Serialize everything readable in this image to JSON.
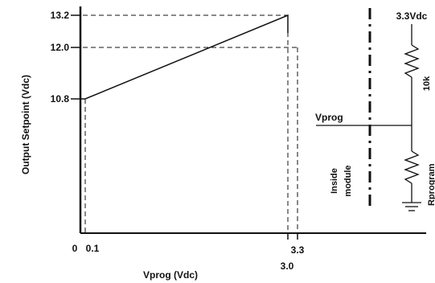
{
  "chart_data": {
    "type": "line",
    "xlabel": "Vprog (Vdc)",
    "ylabel": "Output Setpoint (Vdc)",
    "x_ticks": [
      "0",
      "0.1",
      "3.3",
      "3.0"
    ],
    "y_ticks": [
      "13.2",
      "12.0",
      "10.8"
    ],
    "series": [
      {
        "x": [
          0.1,
          3.0
        ],
        "y": [
          10.8,
          13.2
        ]
      }
    ],
    "reference_levels": {
      "y": [
        10.8,
        12.0,
        13.2
      ],
      "x": [
        0.1,
        3.0,
        3.3
      ]
    }
  },
  "schematic": {
    "supply_label": "3.3Vdc",
    "resistor_top_label": "10k",
    "node_label": "Vprog",
    "boundary_label_line1": "Inside",
    "boundary_label_line2": "module",
    "resistor_bottom_label": "Rprogram"
  }
}
